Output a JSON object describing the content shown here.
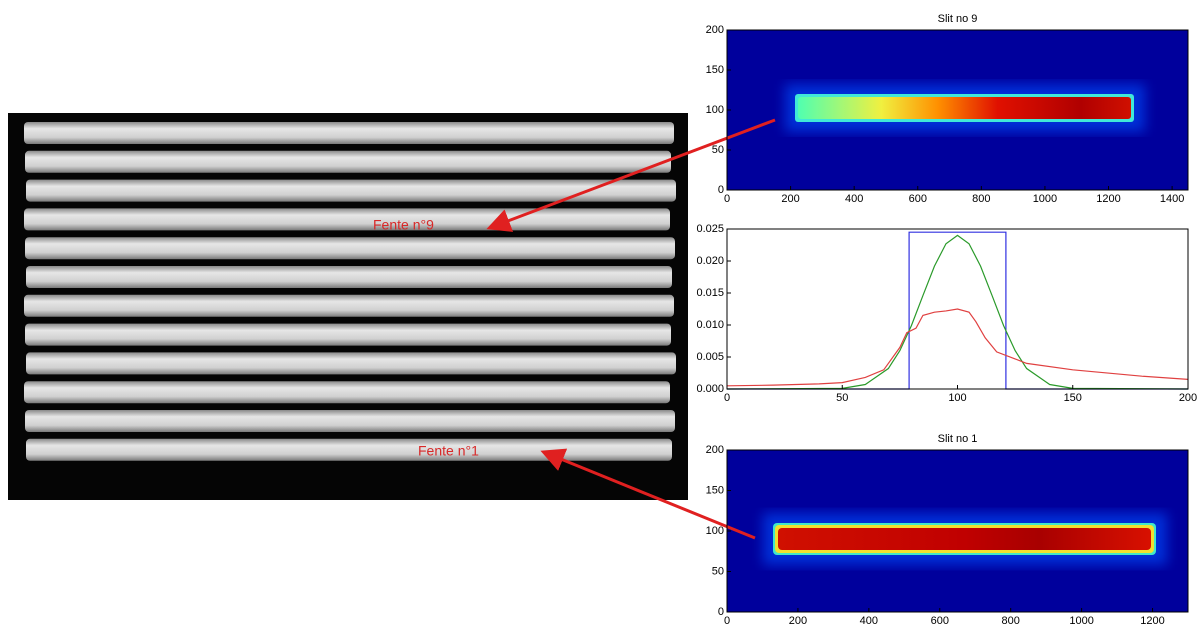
{
  "annotations": [
    "Fente n°9",
    "Fente n°1"
  ],
  "chart_data": [
    {
      "type": "heatmap",
      "title": "Slit no 9",
      "xlim": [
        0,
        1450
      ],
      "xticks": [
        0,
        200,
        400,
        600,
        800,
        1000,
        1200,
        1400
      ],
      "ylim": [
        0,
        200
      ],
      "yticks": [
        0,
        50,
        100,
        150,
        200
      ]
    },
    {
      "type": "line",
      "xlim": [
        0,
        200
      ],
      "xticks": [
        0,
        50,
        100,
        150,
        200
      ],
      "ylim": [
        0,
        0.025
      ],
      "yticks": [
        {
          "value": 0,
          "label": "0.000"
        },
        {
          "value": 0.005,
          "label": "0.005"
        },
        {
          "value": 0.01,
          "label": "0.010"
        },
        {
          "value": 0.015,
          "label": "0.015"
        },
        {
          "value": 0.02,
          "label": "0.020"
        },
        {
          "value": 0.025,
          "label": "0.025"
        }
      ],
      "series": [
        {
          "color": "#3030e0",
          "x": [
            0,
            79,
            79,
            121,
            121,
            200
          ],
          "values": [
            0,
            0,
            0.0245,
            0.0245,
            0,
            0
          ]
        },
        {
          "color": "#2a9a2a",
          "x": [
            0,
            50,
            60,
            70,
            75,
            80,
            85,
            90,
            95,
            100,
            105,
            110,
            115,
            120,
            125,
            130,
            140,
            150,
            200
          ],
          "values": [
            0,
            0.0001,
            0.0007,
            0.0032,
            0.006,
            0.0099,
            0.0146,
            0.0192,
            0.0227,
            0.024,
            0.0227,
            0.0192,
            0.0146,
            0.0099,
            0.006,
            0.0032,
            0.0007,
            0.0001,
            0
          ]
        },
        {
          "color": "#e04040",
          "x": [
            0,
            20,
            40,
            50,
            60,
            68,
            75,
            78,
            82,
            85,
            90,
            95,
            100,
            105,
            108,
            112,
            117,
            125,
            130,
            150,
            180,
            200
          ],
          "values": [
            0.0005,
            0.0006,
            0.0008,
            0.001,
            0.0018,
            0.003,
            0.0065,
            0.0088,
            0.0095,
            0.0115,
            0.012,
            0.0122,
            0.0125,
            0.012,
            0.0105,
            0.008,
            0.0058,
            0.0047,
            0.004,
            0.003,
            0.002,
            0.0015
          ]
        }
      ]
    },
    {
      "type": "heatmap",
      "title": "Slit no 1",
      "xlim": [
        0,
        1300
      ],
      "xticks": [
        0,
        200,
        400,
        600,
        800,
        1000,
        1200
      ],
      "ylim": [
        0,
        200
      ],
      "yticks": [
        0,
        50,
        100,
        150,
        200
      ]
    }
  ]
}
